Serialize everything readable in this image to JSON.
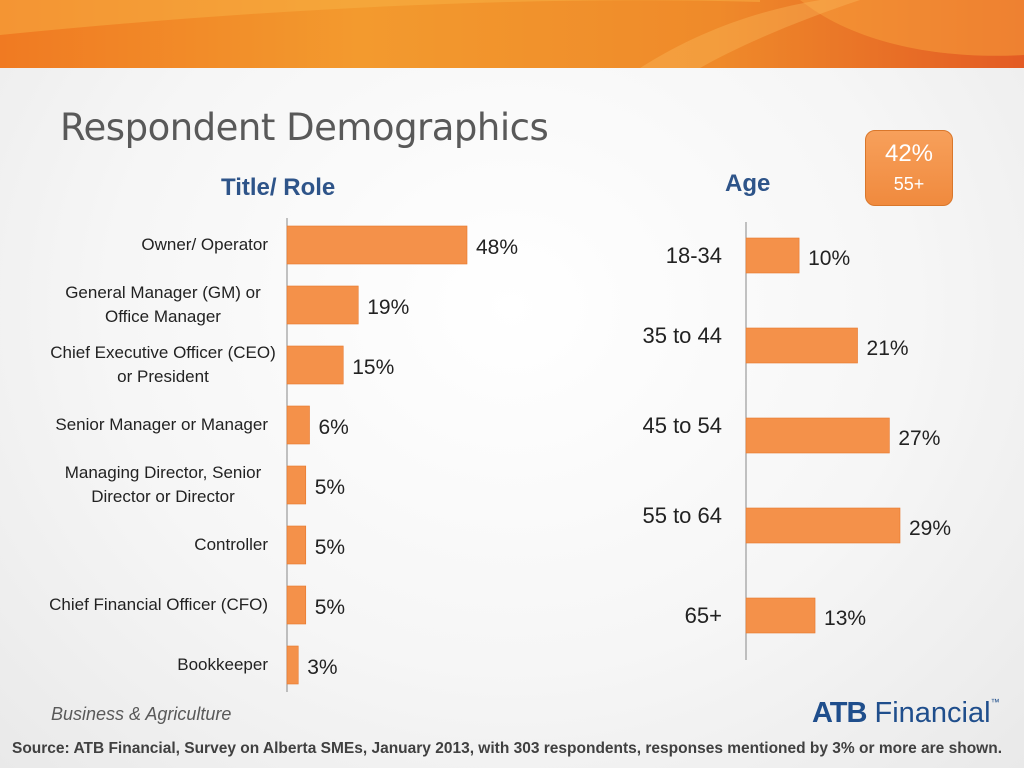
{
  "page": {
    "title": "Respondent Demographics",
    "footer_left": "Business & Agriculture",
    "logo": {
      "bold": "ATB",
      "text": "Financial",
      "mark": "™"
    },
    "source": "Source:  ATB Financial, Survey on Alberta SMEs, January 2013, with 303 respondents, responses mentioned by 3% or more are shown."
  },
  "badge": {
    "value": "42%",
    "label": "55+"
  },
  "colors": {
    "bar": "#F4914A",
    "bar_dark": "#E7772C",
    "heading": "#2E5489",
    "banner": "#E8692A"
  },
  "chart_data": [
    {
      "type": "bar",
      "orientation": "horizontal",
      "title": "Title/ Role",
      "xlim": [
        0,
        100
      ],
      "categories": [
        [
          "Owner/ Operator"
        ],
        [
          "General Manager (GM) or",
          "Office Manager"
        ],
        [
          "Chief Executive Officer (CEO)",
          "or President"
        ],
        [
          "Senior Manager or Manager"
        ],
        [
          "Managing Director, Senior",
          "Director or Director"
        ],
        [
          "Controller"
        ],
        [
          "Chief Financial Officer (CFO)"
        ],
        [
          "Bookkeeper"
        ]
      ],
      "values": [
        48,
        19,
        15,
        6,
        5,
        5,
        5,
        3
      ],
      "value_labels": [
        "48%",
        "19%",
        "15%",
        "6%",
        "5%",
        "5%",
        "5%",
        "3%"
      ]
    },
    {
      "type": "bar",
      "orientation": "horizontal",
      "title": "Age",
      "xlim": [
        0,
        50
      ],
      "categories": [
        "18-34",
        "35 to 44",
        "45 to 54",
        "55 to 64",
        "65+"
      ],
      "values": [
        10,
        21,
        27,
        29,
        13
      ],
      "value_labels": [
        "10%",
        "21%",
        "27%",
        "29%",
        "13%"
      ]
    }
  ]
}
